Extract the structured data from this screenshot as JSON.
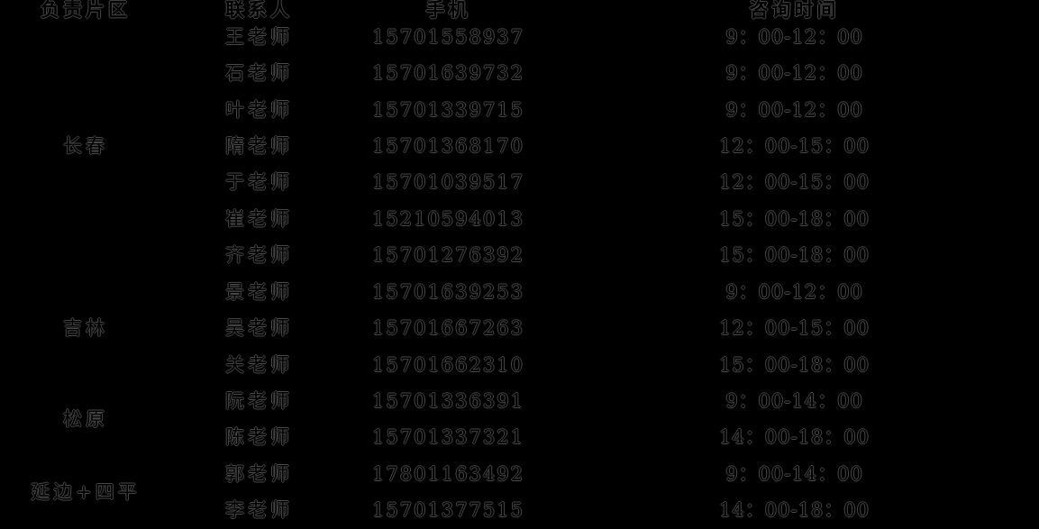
{
  "colors": {
    "background": "#000000",
    "text_fill": "#000000",
    "text_outline": "#474747"
  },
  "table": {
    "headers": [
      "负责片区",
      "联系人",
      "手机",
      "咨询时间"
    ],
    "groups": [
      {
        "region": "长春",
        "rows": [
          {
            "contact": "王老师",
            "phone": "15701558937",
            "time": "9：00-12：00"
          },
          {
            "contact": "石老师",
            "phone": "15701639732",
            "time": "9：00-12：00"
          },
          {
            "contact": "叶老师",
            "phone": "15701339715",
            "time": "9：00-12：00"
          },
          {
            "contact": "隋老师",
            "phone": "15701368170",
            "time": "12：00-15：00"
          },
          {
            "contact": "于老师",
            "phone": "15701039517",
            "time": "12：00-15：00"
          },
          {
            "contact": "崔老师",
            "phone": "15210594013",
            "time": "15：00-18：00"
          },
          {
            "contact": "齐老师",
            "phone": "15701276392",
            "time": "15：00-18：00"
          }
        ]
      },
      {
        "region": "吉林",
        "rows": [
          {
            "contact": "景老师",
            "phone": "15701639253",
            "time": "9：00-12：00"
          },
          {
            "contact": "吴老师",
            "phone": "15701667263",
            "time": "12：00-15：00"
          },
          {
            "contact": "关老师",
            "phone": "15701662310",
            "time": "15：00-18：00"
          }
        ]
      },
      {
        "region": "松原",
        "rows": [
          {
            "contact": "阮老师",
            "phone": "15701336391",
            "time": "9：00-14：00"
          },
          {
            "contact": "陈老师",
            "phone": "15701337321",
            "time": "14：00-18：00"
          }
        ]
      },
      {
        "region": "延边+四平",
        "rows": [
          {
            "contact": "郭老师",
            "phone": "17801163492",
            "time": "9：00-14：00"
          },
          {
            "contact": "李老师",
            "phone": "15701377515",
            "time": "14：00-18：00"
          }
        ]
      }
    ]
  }
}
